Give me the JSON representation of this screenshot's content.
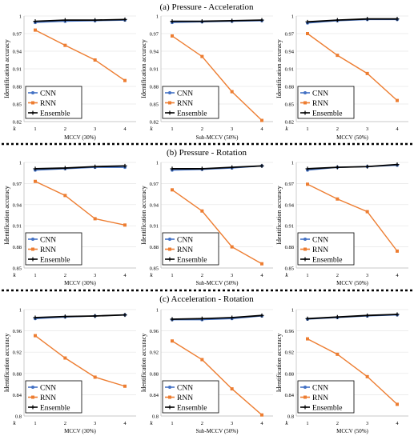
{
  "rows": [
    {
      "title": "(a) Pressure - Acceleration",
      "panels": [
        {
          "xlabel": "MCCV (30%)",
          "ylabel": "Identification accuracy",
          "yticks": [
            "0.82",
            "0.85",
            "0.88",
            "0.91",
            "0.94",
            "0.97",
            "1"
          ],
          "ylim": [
            0.82,
            1.0
          ]
        },
        {
          "xlabel": "Sub-MCCV (50%)",
          "ylabel": "Identification accuracy",
          "yticks": [
            "0.82",
            "0.85",
            "0.88",
            "0.91",
            "0.94",
            "0.97",
            "1"
          ],
          "ylim": [
            0.82,
            1.0
          ]
        },
        {
          "xlabel": "MCCV (50%)",
          "ylabel": "Identification accuracy",
          "yticks": [
            "0.82",
            "0.85",
            "0.88",
            "0.91",
            "0.94",
            "0.97",
            "1"
          ],
          "ylim": [
            0.82,
            1.0
          ]
        }
      ]
    },
    {
      "title": "(b) Pressure - Rotation",
      "panels": [
        {
          "xlabel": "MCCV (30%)",
          "ylabel": "Identification accuracy",
          "yticks": [
            "0.85",
            "0.88",
            "0.91",
            "0.94",
            "0.97",
            "1"
          ],
          "ylim": [
            0.85,
            1.0
          ]
        },
        {
          "xlabel": "Sub-MCCV (50%)",
          "ylabel": "Identification accuracy",
          "yticks": [
            "0.85",
            "0.88",
            "0.91",
            "0.94",
            "0.97",
            "1"
          ],
          "ylim": [
            0.85,
            1.0
          ]
        },
        {
          "xlabel": "MCCV (50%)",
          "ylabel": "Identification accuracy",
          "yticks": [
            "0.85",
            "0.88",
            "0.91",
            "0.94",
            "0.97",
            "1"
          ],
          "ylim": [
            0.85,
            1.0
          ]
        }
      ]
    },
    {
      "title": "(c) Acceleration - Rotation",
      "panels": [
        {
          "xlabel": "MCCV (30%)",
          "ylabel": "Identification accuracy",
          "yticks": [
            "0.8",
            "0.84",
            "0.88",
            "0.92",
            "0.96",
            "1"
          ],
          "ylim": [
            0.8,
            1.0
          ]
        },
        {
          "xlabel": "Sub-MCCV (50%)",
          "ylabel": "Identification accuracy",
          "yticks": [
            "0.8",
            "0.84",
            "0.88",
            "0.92",
            "0.96",
            "1"
          ],
          "ylim": [
            0.8,
            1.0
          ]
        },
        {
          "xlabel": "MCCV (50%)",
          "ylabel": "Identification accuracy",
          "yticks": [
            "0.8",
            "0.84",
            "0.88",
            "0.92",
            "0.96",
            "1"
          ],
          "ylim": [
            0.8,
            1.0
          ]
        }
      ]
    }
  ],
  "k_label": "k",
  "legend": [
    "CNN",
    "RNN",
    "Ensemble"
  ],
  "colors": {
    "CNN": "#4472c4",
    "RNN": "#ed7d31",
    "Ensemble": "#000000"
  },
  "chart_data": [
    {
      "type": "line",
      "xlabel": "MCCV (30%)",
      "ylabel": "Identification accuracy",
      "x": [
        1,
        2,
        3,
        4
      ],
      "ylim": [
        0.82,
        1.0
      ],
      "series": [
        {
          "name": "CNN",
          "values": [
            0.989,
            0.991,
            0.992,
            0.993
          ]
        },
        {
          "name": "RNN",
          "values": [
            0.976,
            0.95,
            0.925,
            0.89
          ]
        },
        {
          "name": "Ensemble",
          "values": [
            0.991,
            0.993,
            0.993,
            0.994
          ]
        }
      ]
    },
    {
      "type": "line",
      "xlabel": "Sub-MCCV (50%)",
      "ylabel": "Identification accuracy",
      "x": [
        1,
        2,
        3,
        4
      ],
      "ylim": [
        0.82,
        1.0
      ],
      "series": [
        {
          "name": "CNN",
          "values": [
            0.989,
            0.99,
            0.991,
            0.992
          ]
        },
        {
          "name": "RNN",
          "values": [
            0.966,
            0.931,
            0.871,
            0.822
          ]
        },
        {
          "name": "Ensemble",
          "values": [
            0.991,
            0.991,
            0.992,
            0.993
          ]
        }
      ]
    },
    {
      "type": "line",
      "xlabel": "MCCV (50%)",
      "ylabel": "Identification accuracy",
      "x": [
        1,
        2,
        3,
        4
      ],
      "ylim": [
        0.82,
        1.0
      ],
      "series": [
        {
          "name": "CNN",
          "values": [
            0.988,
            0.992,
            0.994,
            0.994
          ]
        },
        {
          "name": "RNN",
          "values": [
            0.97,
            0.933,
            0.902,
            0.856
          ]
        },
        {
          "name": "Ensemble",
          "values": [
            0.99,
            0.993,
            0.995,
            0.995
          ]
        }
      ]
    },
    {
      "type": "line",
      "xlabel": "MCCV (30%)",
      "ylabel": "Identification accuracy",
      "x": [
        1,
        2,
        3,
        4
      ],
      "ylim": [
        0.85,
        1.0
      ],
      "series": [
        {
          "name": "CNN",
          "values": [
            0.989,
            0.991,
            0.993,
            0.993
          ]
        },
        {
          "name": "RNN",
          "values": [
            0.973,
            0.953,
            0.92,
            0.911
          ]
        },
        {
          "name": "Ensemble",
          "values": [
            0.991,
            0.992,
            0.994,
            0.995
          ]
        }
      ]
    },
    {
      "type": "line",
      "xlabel": "Sub-MCCV (50%)",
      "ylabel": "Identification accuracy",
      "x": [
        1,
        2,
        3,
        4
      ],
      "ylim": [
        0.85,
        1.0
      ],
      "series": [
        {
          "name": "CNN",
          "values": [
            0.989,
            0.99,
            0.992,
            0.995
          ]
        },
        {
          "name": "RNN",
          "values": [
            0.961,
            0.931,
            0.88,
            0.856
          ]
        },
        {
          "name": "Ensemble",
          "values": [
            0.991,
            0.991,
            0.993,
            0.995
          ]
        }
      ]
    },
    {
      "type": "line",
      "xlabel": "MCCV (50%)",
      "ylabel": "Identification accuracy",
      "x": [
        1,
        2,
        3,
        4
      ],
      "ylim": [
        0.85,
        1.0
      ],
      "series": [
        {
          "name": "CNN",
          "values": [
            0.989,
            0.993,
            0.994,
            0.996
          ]
        },
        {
          "name": "RNN",
          "values": [
            0.969,
            0.948,
            0.93,
            0.874
          ]
        },
        {
          "name": "Ensemble",
          "values": [
            0.991,
            0.993,
            0.994,
            0.997
          ]
        }
      ]
    },
    {
      "type": "line",
      "xlabel": "MCCV (30%)",
      "ylabel": "Identification accuracy",
      "x": [
        1,
        2,
        3,
        4
      ],
      "ylim": [
        0.8,
        1.0
      ],
      "series": [
        {
          "name": "CNN",
          "values": [
            0.983,
            0.986,
            0.988,
            0.99
          ]
        },
        {
          "name": "RNN",
          "values": [
            0.951,
            0.909,
            0.873,
            0.856
          ]
        },
        {
          "name": "Ensemble",
          "values": [
            0.985,
            0.987,
            0.988,
            0.99
          ]
        }
      ]
    },
    {
      "type": "line",
      "xlabel": "Sub-MCCV (50%)",
      "ylabel": "Identification accuracy",
      "x": [
        1,
        2,
        3,
        4
      ],
      "ylim": [
        0.8,
        1.0
      ],
      "series": [
        {
          "name": "CNN",
          "values": [
            0.981,
            0.981,
            0.983,
            0.988
          ]
        },
        {
          "name": "RNN",
          "values": [
            0.941,
            0.906,
            0.851,
            0.802
          ]
        },
        {
          "name": "Ensemble",
          "values": [
            0.982,
            0.983,
            0.985,
            0.989
          ]
        }
      ]
    },
    {
      "type": "line",
      "xlabel": "MCCV (50%)",
      "ylabel": "Identification accuracy",
      "x": [
        1,
        2,
        3,
        4
      ],
      "ylim": [
        0.8,
        1.0
      ],
      "series": [
        {
          "name": "CNN",
          "values": [
            0.982,
            0.985,
            0.988,
            0.99
          ]
        },
        {
          "name": "RNN",
          "values": [
            0.945,
            0.916,
            0.874,
            0.822
          ]
        },
        {
          "name": "Ensemble",
          "values": [
            0.983,
            0.986,
            0.989,
            0.991
          ]
        }
      ]
    }
  ]
}
